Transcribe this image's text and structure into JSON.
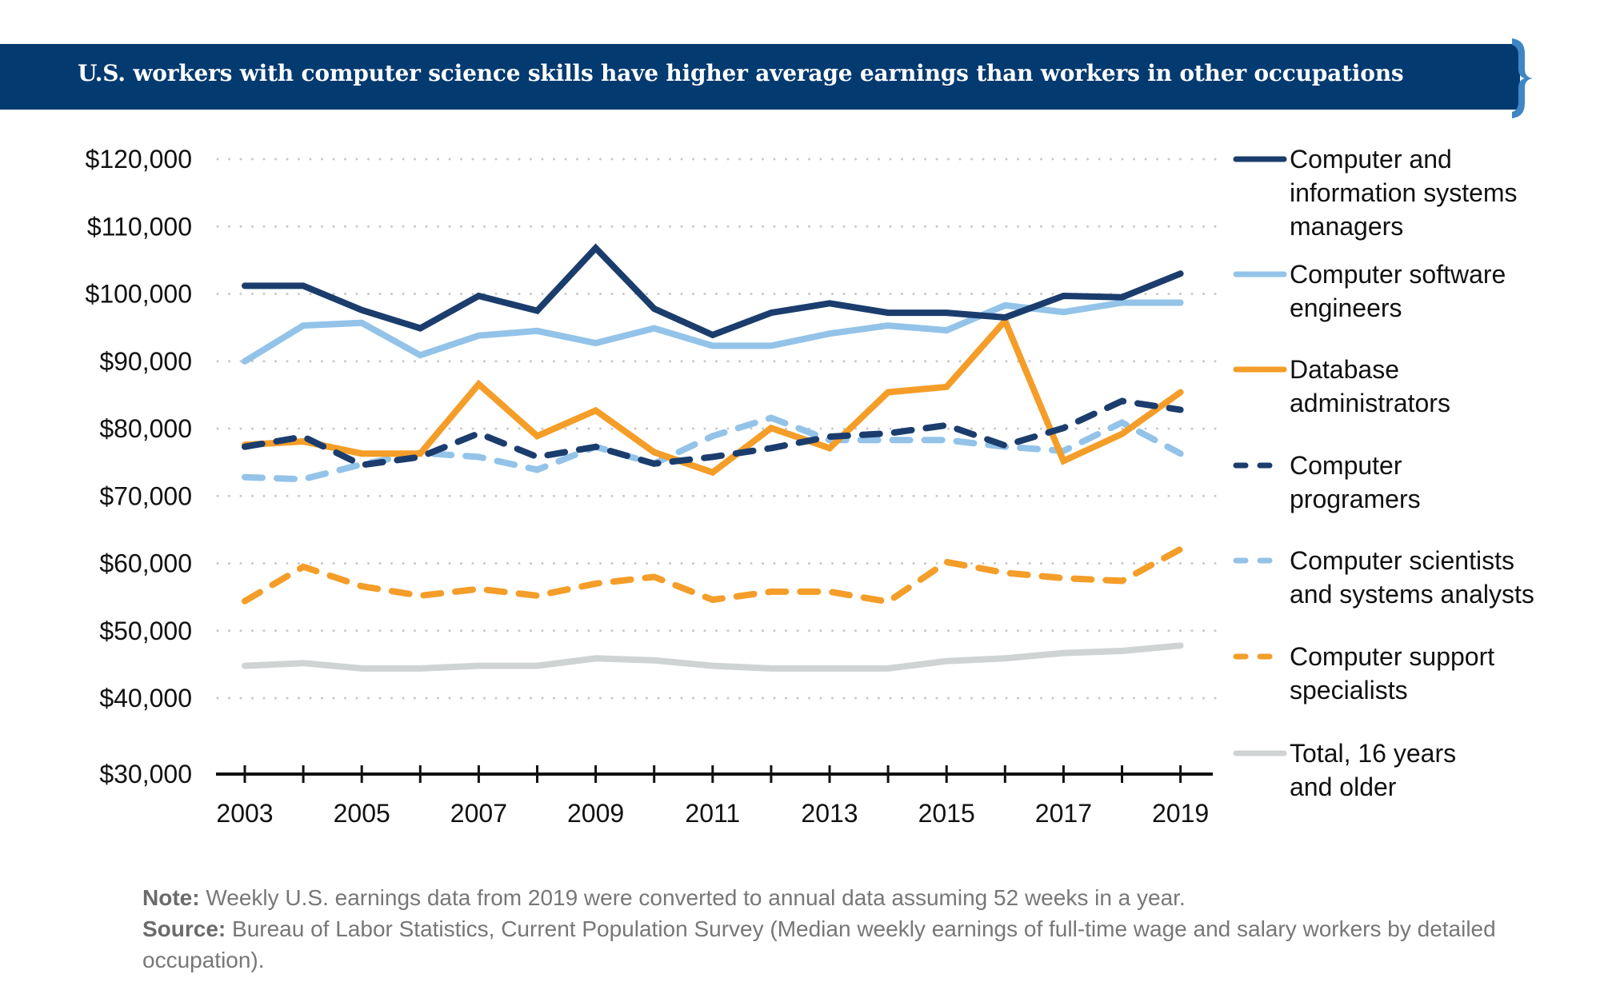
{
  "header": {
    "title": "U.S. workers with computer science skills have higher average earnings than workers in other occupations",
    "banner_color": "#033a70",
    "brace_color": "#3f86c5"
  },
  "chart_data": {
    "type": "line",
    "title": "U.S. workers with computer science skills have higher average earnings than workers in other occupations",
    "xlabel": "",
    "ylabel": "",
    "x": [
      2003,
      2004,
      2005,
      2006,
      2007,
      2008,
      2009,
      2010,
      2011,
      2012,
      2013,
      2014,
      2015,
      2016,
      2017,
      2018,
      2019
    ],
    "x_tick_labels": [
      "2003",
      "2005",
      "2007",
      "2009",
      "2011",
      "2013",
      "2015",
      "2017",
      "2019"
    ],
    "y_tick_values": [
      30000,
      40000,
      50000,
      60000,
      70000,
      80000,
      90000,
      100000,
      110000,
      120000
    ],
    "y_tick_labels": [
      "$30,000",
      "$40,000",
      "$50,000",
      "$60,000",
      "$70,000",
      "$80,000",
      "$90,000",
      "$100,000",
      "$110,000",
      "$120,000"
    ],
    "ylim": [
      30000,
      120000
    ],
    "grid": "horizontal dotted",
    "legend_position": "right",
    "series": [
      {
        "name": "Computer and\ninformation systems\nmanagers",
        "color": "#1b3d6d",
        "dash": "solid",
        "values": [
          101200,
          101200,
          97600,
          94900,
          99700,
          97500,
          106800,
          97800,
          93900,
          97200,
          98600,
          97200,
          97200,
          96500,
          99700,
          99500,
          103000
        ]
      },
      {
        "name": "Computer software\nengineers",
        "color": "#93c3e8",
        "dash": "solid",
        "values": [
          90000,
          95300,
          95700,
          90900,
          93800,
          94500,
          92700,
          94900,
          92300,
          92300,
          94100,
          95300,
          94600,
          98300,
          97300,
          98700,
          98700
        ]
      },
      {
        "name": "Database\nadministrators",
        "color": "#f49d28",
        "dash": "solid",
        "values": [
          77600,
          78100,
          76300,
          76300,
          86600,
          78900,
          82700,
          76500,
          73500,
          80100,
          77100,
          85400,
          86200,
          96000,
          75200,
          79200,
          85400
        ]
      },
      {
        "name": "Computer\nprogramers",
        "color": "#1b3d6d",
        "dash": "dashed",
        "values": [
          77300,
          78800,
          74600,
          75800,
          79300,
          75800,
          77300,
          74800,
          75800,
          77100,
          78800,
          79300,
          80500,
          77500,
          80100,
          84100,
          82800
        ]
      },
      {
        "name": "Computer scientists\nand systems analysts",
        "color": "#93c3e8",
        "dash": "dashed",
        "values": [
          72800,
          72500,
          74700,
          76400,
          75800,
          73900,
          77300,
          74800,
          78900,
          81600,
          78300,
          78300,
          78300,
          77300,
          76700,
          80900,
          76300
        ]
      },
      {
        "name": "Computer support\nspecialists",
        "color": "#f49d28",
        "dash": "dashed",
        "values": [
          54400,
          59500,
          56600,
          55200,
          56200,
          55200,
          57000,
          58000,
          54600,
          55800,
          55800,
          54300,
          60200,
          58600,
          57800,
          57400,
          62100
        ]
      },
      {
        "name": "Total, 16 years\nand older",
        "color": "#d0d3d4",
        "dash": "solid",
        "values": [
          44800,
          45200,
          44400,
          44400,
          44800,
          44800,
          45900,
          45600,
          44800,
          44400,
          44400,
          44400,
          45500,
          45900,
          46700,
          47000,
          47800
        ]
      }
    ]
  },
  "footer": {
    "note_label": "Note:",
    "note_text": " Weekly U.S. earnings data from 2019 were converted to annual data assuming 52 weeks in a year.",
    "source_label": "Source:",
    "source_text": " Bureau of Labor Statistics, Current Population Survey (Median weekly earnings of full-time wage and salary workers by detailed occupation)."
  }
}
